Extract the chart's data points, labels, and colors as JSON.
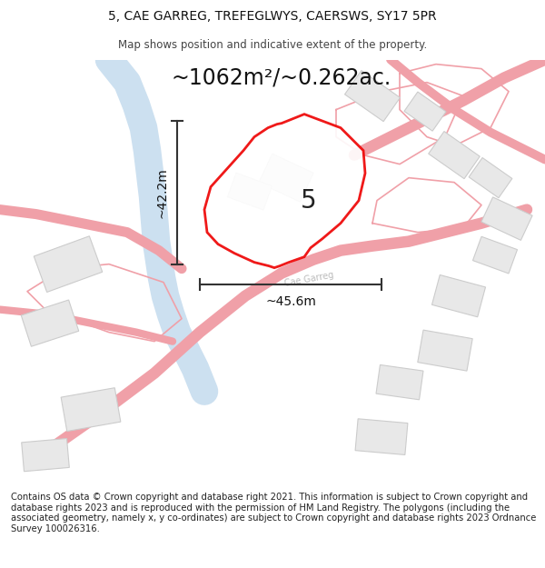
{
  "title_line1": "5, CAE GARREG, TREFEGLWYS, CAERSWS, SY17 5PR",
  "title_line2": "Map shows position and indicative extent of the property.",
  "area_text": "~1062m²/~0.262ac.",
  "label_number": "5",
  "dim_vertical": "~42.2m",
  "dim_horizontal": "~45.6m",
  "footer_text": "Contains OS data © Crown copyright and database right 2021. This information is subject to Crown copyright and database rights 2023 and is reproduced with the permission of HM Land Registry. The polygons (including the associated geometry, namely x, y co-ordinates) are subject to Crown copyright and database rights 2023 Ordnance Survey 100026316.",
  "bg_color": "#ffffff",
  "map_bg": "#ffffff",
  "road_color": "#f0a0a8",
  "water_color": "#cce0f0",
  "building_fill": "#e8e8e8",
  "building_edge": "#cccccc",
  "plot_fill": "#ffffff",
  "plot_edge": "#ee0000",
  "dim_line_color": "#333333",
  "street_label_color": "#bbbbbb",
  "title_fontsize": 10,
  "subtitle_fontsize": 8.5,
  "area_fontsize": 17,
  "label_fontsize": 20,
  "dim_fontsize": 10,
  "footer_fontsize": 7.2
}
